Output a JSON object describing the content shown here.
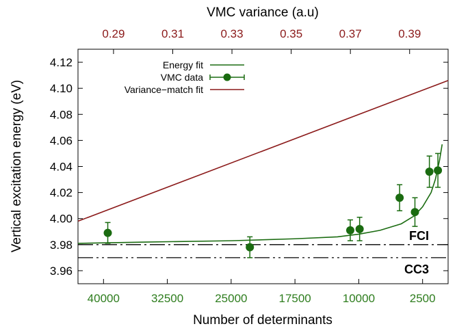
{
  "chart_data": {
    "type": "scatter",
    "xlabel": "Number of determinants",
    "ylabel": "Vertical excitation energy (eV)",
    "top_xlabel": "VMC variance (a.u)",
    "x_reversed": true,
    "xlim": [
      43000,
      -500
    ],
    "ylim": [
      3.95,
      4.13
    ],
    "top_xlim": [
      0.278,
      0.403
    ],
    "x_ticks": [
      40000,
      32500,
      25000,
      17500,
      10000,
      2500
    ],
    "x_tick_labels": [
      "40000",
      "32500",
      "25000",
      "17500",
      "10000",
      "2500"
    ],
    "y_ticks": [
      3.96,
      3.98,
      4.0,
      4.02,
      4.04,
      4.06,
      4.08,
      4.1,
      4.12
    ],
    "y_tick_labels": [
      "3.96",
      "3.98",
      "4.00",
      "4.02",
      "4.04",
      "4.06",
      "4.08",
      "4.10",
      "4.12"
    ],
    "top_ticks": [
      0.29,
      0.31,
      0.33,
      0.35,
      0.37,
      0.39
    ],
    "top_tick_labels": [
      "0.29",
      "0.31",
      "0.33",
      "0.35",
      "0.37",
      "0.39"
    ],
    "legend": {
      "placement": "top-left",
      "entries": [
        "Energy fit",
        "VMC data",
        "Variance−match fit"
      ]
    },
    "series": [
      {
        "name": "VMC data",
        "kind": "points_with_error",
        "color": "#1a6b10",
        "x": [
          39500,
          22800,
          11000,
          9900,
          5200,
          3400,
          1700,
          700
        ],
        "y": [
          3.989,
          3.978,
          3.991,
          3.992,
          4.016,
          4.005,
          4.036,
          4.037
        ],
        "err": [
          0.008,
          0.008,
          0.008,
          0.009,
          0.01,
          0.011,
          0.012,
          0.013
        ]
      },
      {
        "name": "Energy fit",
        "kind": "line",
        "color": "#1a6b10",
        "x": [
          43000,
          35000,
          25000,
          17500,
          12500,
          10000,
          7500,
          5000,
          3500,
          2500,
          1500,
          1000,
          500,
          200
        ],
        "y": [
          3.981,
          3.982,
          3.983,
          3.9845,
          3.986,
          3.988,
          3.991,
          3.996,
          4.002,
          4.009,
          4.02,
          4.03,
          4.045,
          4.057
        ]
      },
      {
        "name": "Variance−match fit",
        "kind": "line",
        "color": "#8b1a1a",
        "x": [
          43000,
          -500
        ],
        "y": [
          3.998,
          4.106
        ]
      }
    ],
    "reference_lines": [
      {
        "label": "FCI",
        "y": 3.98,
        "style": "dash-dot"
      },
      {
        "label": "CC3",
        "y": 3.97,
        "style": "dash-dot-dot"
      }
    ],
    "colors": {
      "bottom_axis": "#2e7d1e",
      "top_axis": "#8b1a1a"
    }
  }
}
